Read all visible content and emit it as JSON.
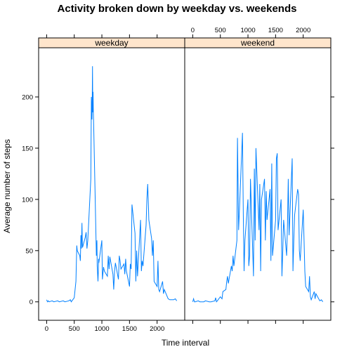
{
  "chart_data": {
    "type": "line",
    "title": "Activity broken down by weekday vs. weekends",
    "xlabel": "Time interval",
    "ylabel": "Average number of steps",
    "xlim": [
      -145,
      2500
    ],
    "ylim": [
      -18,
      248
    ],
    "x_ticks": [
      0,
      500,
      1000,
      1500,
      2000
    ],
    "y_ticks": [
      0,
      50,
      100,
      150,
      200
    ],
    "line_color": "#0080ff",
    "strip_color": "#ffe5cc",
    "panels": [
      {
        "name": "weekday",
        "x": [
          0,
          15,
          30,
          45,
          100,
          130,
          200,
          230,
          300,
          330,
          400,
          430,
          445,
          500,
          530,
          545,
          555,
          600,
          610,
          620,
          630,
          640,
          645,
          650,
          700,
          715,
          730,
          745,
          800,
          810,
          820,
          825,
          830,
          835,
          840,
          845,
          850,
          855,
          900,
          910,
          915,
          930,
          935,
          940,
          945,
          1000,
          1010,
          1030,
          1045,
          1100,
          1115,
          1130,
          1145,
          1200,
          1215,
          1230,
          1245,
          1300,
          1315,
          1330,
          1345,
          1400,
          1415,
          1430,
          1445,
          1500,
          1515,
          1530,
          1545,
          1600,
          1615,
          1630,
          1645,
          1700,
          1715,
          1730,
          1745,
          1800,
          1815,
          1830,
          1845,
          1850,
          1900,
          1915,
          1930,
          1945,
          2000,
          2015,
          2030,
          2045,
          2100,
          2115,
          2130,
          2200,
          2230,
          2300,
          2330,
          2355
        ],
        "y": [
          2,
          0,
          1,
          0,
          1,
          0,
          1,
          0,
          1,
          0,
          1,
          2,
          0,
          4,
          20,
          55,
          50,
          45,
          40,
          65,
          52,
          77,
          62,
          53,
          63,
          68,
          52,
          60,
          120,
          200,
          178,
          196,
          230,
          185,
          205,
          185,
          178,
          165,
          45,
          60,
          35,
          20,
          28,
          42,
          38,
          60,
          22,
          34,
          30,
          25,
          45,
          32,
          44,
          27,
          12,
          30,
          38,
          22,
          45,
          40,
          32,
          37,
          27,
          42,
          30,
          15,
          37,
          32,
          95,
          67,
          20,
          50,
          25,
          80,
          30,
          40,
          35,
          75,
          100,
          115,
          90,
          80,
          62,
          45,
          60,
          20,
          15,
          40,
          12,
          10,
          20,
          8,
          12,
          3,
          2,
          2,
          3,
          1
        ]
      },
      {
        "name": "weekend",
        "x": [
          0,
          15,
          30,
          45,
          100,
          130,
          200,
          230,
          300,
          330,
          400,
          415,
          430,
          445,
          500,
          530,
          545,
          600,
          615,
          630,
          645,
          700,
          715,
          730,
          745,
          800,
          810,
          815,
          830,
          845,
          900,
          915,
          930,
          945,
          1000,
          1015,
          1030,
          1045,
          1100,
          1115,
          1130,
          1145,
          1200,
          1215,
          1230,
          1245,
          1300,
          1315,
          1330,
          1345,
          1400,
          1415,
          1430,
          1445,
          1500,
          1515,
          1530,
          1545,
          1600,
          1615,
          1630,
          1645,
          1700,
          1715,
          1730,
          1745,
          1800,
          1815,
          1830,
          1845,
          1900,
          1915,
          1930,
          1945,
          2000,
          2015,
          2030,
          2045,
          2100,
          2115,
          2130,
          2145,
          2200,
          2215,
          2230,
          2300,
          2330,
          2355
        ],
        "y": [
          0,
          3,
          0,
          0,
          1,
          0,
          0,
          1,
          0,
          0,
          1,
          4,
          0,
          1,
          5,
          3,
          10,
          12,
          20,
          25,
          18,
          35,
          30,
          45,
          35,
          60,
          160,
          140,
          70,
          90,
          165,
          85,
          30,
          60,
          100,
          35,
          45,
          120,
          25,
          130,
          60,
          150,
          70,
          115,
          30,
          100,
          120,
          60,
          108,
          80,
          110,
          40,
          135,
          45,
          80,
          140,
          145,
          70,
          100,
          25,
          50,
          80,
          45,
          75,
          120,
          65,
          140,
          30,
          60,
          85,
          110,
          105,
          50,
          40,
          90,
          60,
          30,
          15,
          10,
          25,
          5,
          2,
          10,
          3,
          8,
          1,
          2,
          0
        ]
      }
    ]
  }
}
